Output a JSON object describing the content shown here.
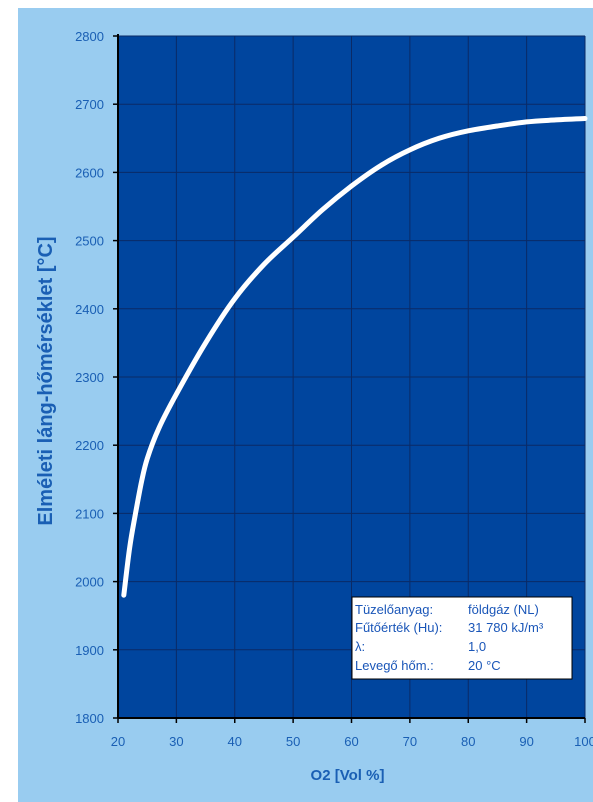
{
  "chart_data": {
    "type": "line",
    "title": "",
    "xlabel": "O2 [Vol %]",
    "ylabel": "Elméleti láng-hőmérséklet   [°C]",
    "xlim": [
      20,
      100
    ],
    "ylim": [
      1800,
      2800
    ],
    "x_ticks": [
      20,
      30,
      40,
      50,
      60,
      70,
      80,
      90,
      100
    ],
    "y_ticks": [
      1800,
      1900,
      2000,
      2100,
      2200,
      2300,
      2400,
      2500,
      2600,
      2700,
      2800
    ],
    "grid": true,
    "series": [
      {
        "x": [
          21,
          22,
          23,
          24,
          25,
          27,
          30,
          35,
          40,
          45,
          50,
          55,
          60,
          65,
          70,
          75,
          80,
          85,
          90,
          95,
          100
        ],
        "y": [
          1980,
          2050,
          2100,
          2145,
          2180,
          2225,
          2275,
          2350,
          2415,
          2465,
          2505,
          2545,
          2580,
          2610,
          2633,
          2650,
          2661,
          2668,
          2674,
          2677,
          2679
        ]
      }
    ],
    "colors": {
      "plot_background": "#00459e",
      "grid": "#0a2a66",
      "line": "#ffffff",
      "text": "#1a5fb4",
      "frame": "#99ccf0"
    }
  },
  "info_box": {
    "rows": [
      {
        "label": "Tüzelőanyag:",
        "value": "földgáz (NL)"
      },
      {
        "label": "Fűtőérték (Hu):",
        "value": "31 780 kJ/m³"
      },
      {
        "label": "λ:",
        "value": "1,0"
      },
      {
        "label": "Levegő hőm.:",
        "value": "20 °C"
      }
    ]
  }
}
